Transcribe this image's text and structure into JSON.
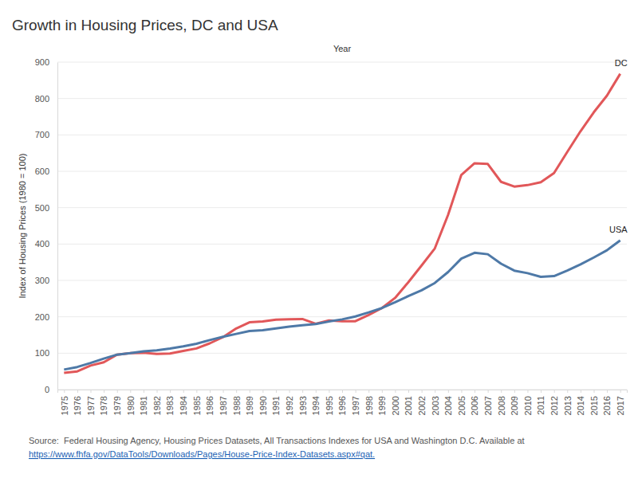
{
  "chart_data": {
    "type": "line",
    "title": "Growth in Housing Prices, DC and USA",
    "x_label": "Year",
    "y_label": "Index of Housing Prices (1980 = 100)",
    "source": "Source:  Federal Housing Agency, Housing Prices Datasets, All Transactions Indexes for USA and Washington D.C. Available at",
    "source_url": "https://www.fhfa.gov/DataTools/Downloads/Pages/House-Price-Index-Datasets.aspx#qat.",
    "categories": [
      "1975",
      "1976",
      "1977",
      "1978",
      "1979",
      "1980",
      "1981",
      "1982",
      "1983",
      "1984",
      "1985",
      "1986",
      "1987",
      "1988",
      "1989",
      "1990",
      "1991",
      "1992",
      "1993",
      "1994",
      "1995",
      "1996",
      "1997",
      "1998",
      "1999",
      "2000",
      "2001",
      "2002",
      "2003",
      "2004",
      "2005",
      "2006",
      "2007",
      "2008",
      "2009",
      "2010",
      "2011",
      "2012",
      "2013",
      "2014",
      "2015",
      "2016",
      "2017"
    ],
    "series": [
      {
        "name": "DC",
        "color": "#e15759",
        "values": [
          46,
          50,
          66,
          75,
          96,
          100,
          101,
          98,
          99,
          106,
          113,
          127,
          144,
          168,
          185,
          187,
          192,
          193,
          194,
          181,
          190,
          188,
          188,
          205,
          224,
          252,
          295,
          341,
          388,
          480,
          590,
          622,
          620,
          571,
          558,
          562,
          570,
          595,
          653,
          710,
          762,
          808,
          868
        ]
      },
      {
        "name": "USA",
        "color": "#4e79a7",
        "values": [
          55,
          62,
          73,
          85,
          96,
          100,
          105,
          108,
          113,
          119,
          126,
          136,
          145,
          153,
          161,
          163,
          168,
          173,
          177,
          180,
          187,
          193,
          201,
          212,
          224,
          240,
          257,
          273,
          293,
          323,
          360,
          376,
          372,
          346,
          327,
          320,
          310,
          312,
          327,
          344,
          363,
          383,
          410
        ]
      }
    ],
    "ylim": [
      0,
      900
    ],
    "yticks": [
      0,
      100,
      200,
      300,
      400,
      500,
      600,
      700,
      800,
      900
    ],
    "grid": true
  }
}
